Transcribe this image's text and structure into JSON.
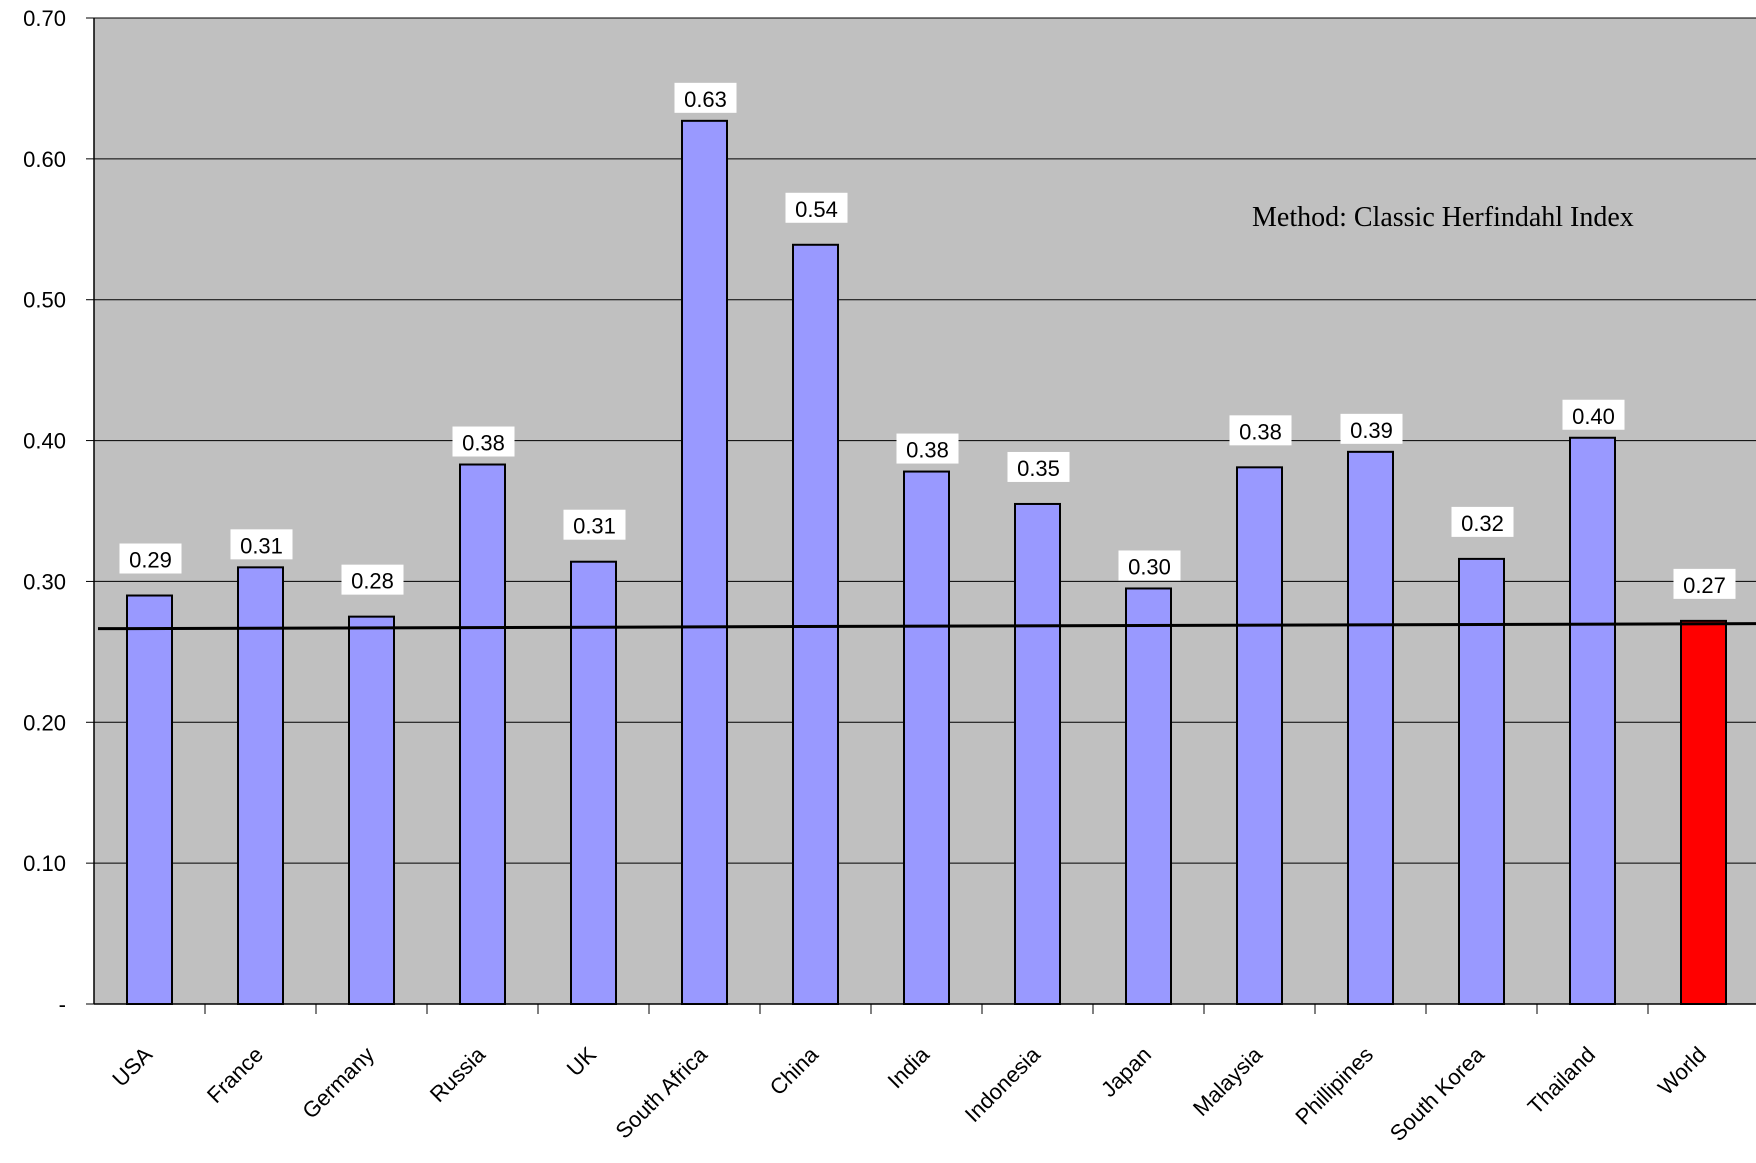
{
  "chart_data": {
    "type": "bar",
    "title": "",
    "xlabel": "",
    "ylabel": "",
    "ylim": [
      0,
      0.7
    ],
    "y_ticks": [
      "-",
      "0.10",
      "0.20",
      "0.30",
      "0.40",
      "0.50",
      "0.60",
      "0.70"
    ],
    "grid": true,
    "categories": [
      "USA",
      "France",
      "Germany",
      "Russia",
      "UK",
      "South Africa",
      "China",
      "India",
      "Indonesia",
      "Japan",
      "Malaysia",
      "Phillipines",
      "South Korea",
      "Thailand",
      "World"
    ],
    "values": [
      0.29,
      0.31,
      0.275,
      0.383,
      0.314,
      0.627,
      0.539,
      0.378,
      0.355,
      0.295,
      0.381,
      0.392,
      0.316,
      0.402,
      0.272
    ],
    "data_labels": [
      "0.29",
      "0.31",
      "0.28",
      "0.38",
      "0.31",
      "0.63",
      "0.54",
      "0.38",
      "0.35",
      "0.30",
      "0.38",
      "0.39",
      "0.32",
      "0.40",
      "0.27"
    ],
    "reference_line": 0.27,
    "annotation": "Method: Classic Herfindahl Index",
    "colors": {
      "plot_background": "#c0c0c0",
      "bar": "#9999ff",
      "highlight_bar": "#ff0000",
      "highlight_category": "World",
      "gridline": "#000000"
    }
  }
}
